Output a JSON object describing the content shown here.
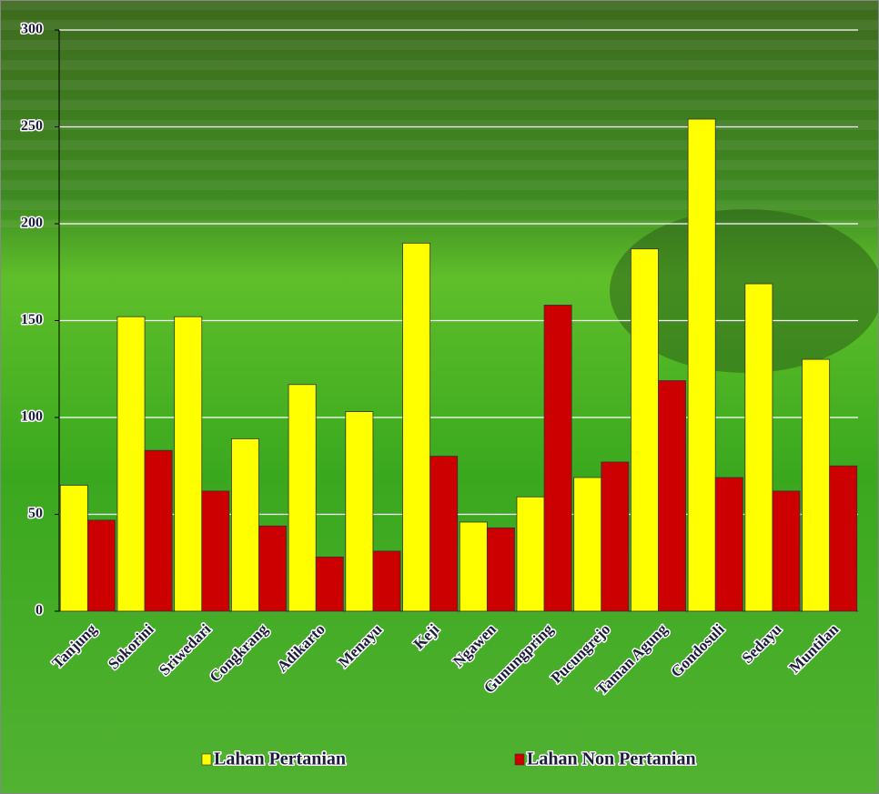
{
  "chart_data": {
    "type": "bar",
    "categories": [
      "Tanjung",
      "Sokorini",
      "Sriwedari",
      "Congkrang",
      "Adikarto",
      "Menayu",
      "Keji",
      "Ngawen",
      "Gunungpring",
      "Pucungrejo",
      "Taman Agung",
      "Gondosuli",
      "Sedayu",
      "Muntilan"
    ],
    "series": [
      {
        "name": "Lahan Pertanian",
        "color": "#ffff00",
        "values": [
          65,
          152,
          152,
          89,
          117,
          103,
          190,
          46,
          59,
          69,
          187,
          254,
          169,
          130
        ]
      },
      {
        "name": "Lahan Non Pertanian",
        "color": "#cc0000",
        "values": [
          47,
          83,
          62,
          44,
          28,
          31,
          80,
          43,
          158,
          77,
          119,
          69,
          62,
          75
        ]
      }
    ],
    "ylim": [
      0,
      300
    ],
    "yticks": [
      0,
      50,
      100,
      150,
      200,
      250,
      300
    ],
    "grid": true
  }
}
